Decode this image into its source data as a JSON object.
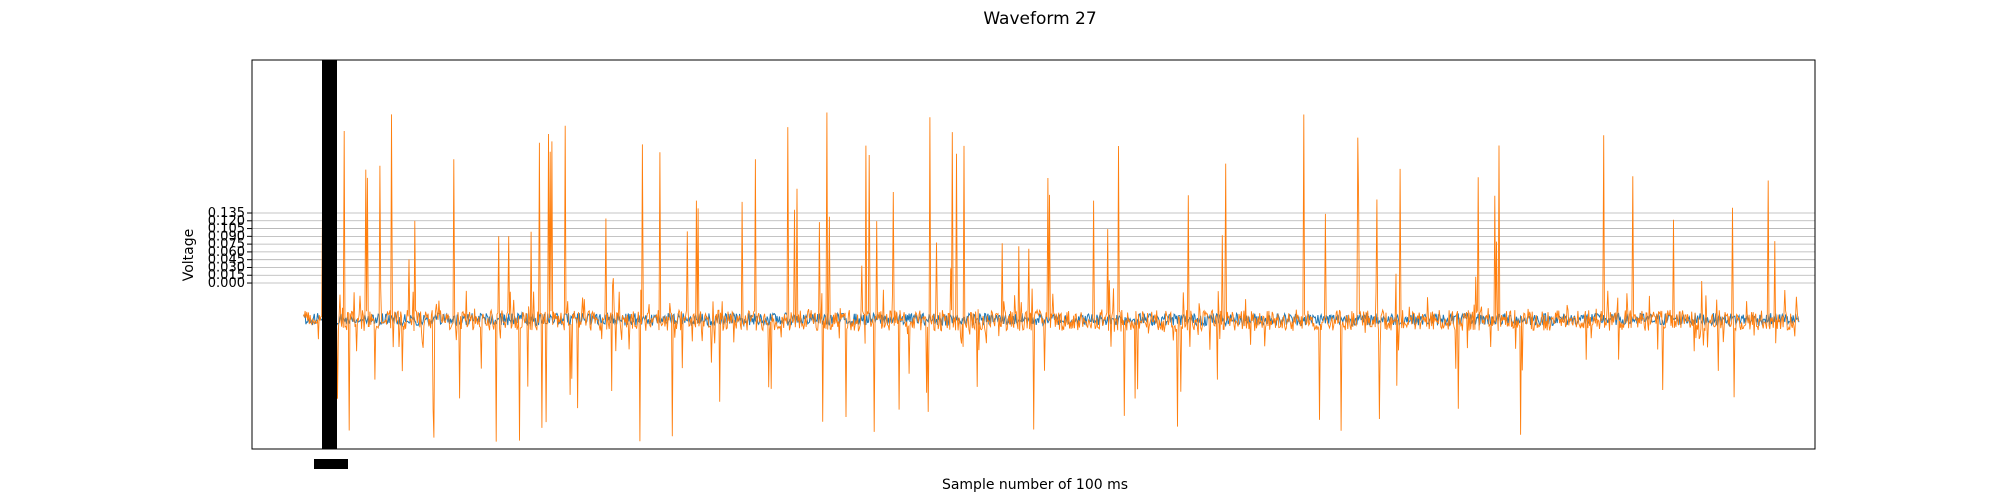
{
  "chart_data": {
    "type": "line",
    "title": "Waveform 27",
    "xlabel": "Sample number of 100 ms",
    "ylabel": "Voltage",
    "grid": true,
    "legend": "none",
    "xlim": [
      -160,
      4700
    ],
    "ylim": [
      -0.32,
      0.43
    ],
    "y_ticks": [
      0.0,
      0.015,
      0.03,
      0.045,
      0.06,
      0.075,
      0.09,
      0.105,
      0.12,
      0.135
    ],
    "y_tick_labels": [
      "0.000",
      "0.015",
      "0.030",
      "0.045",
      "0.060",
      "0.075",
      "0.090",
      "0.105",
      "0.120",
      "0.135"
    ],
    "x_range": [
      0,
      4650
    ],
    "series": [
      {
        "color": "#1f77b4",
        "baseline": -0.07,
        "noise_amplitude": 0.012
      },
      {
        "color": "#ff7f0e",
        "baseline": -0.072,
        "noise_amplitude": 0.02,
        "spike_max": 0.33,
        "spike_min": -0.31
      }
    ]
  }
}
